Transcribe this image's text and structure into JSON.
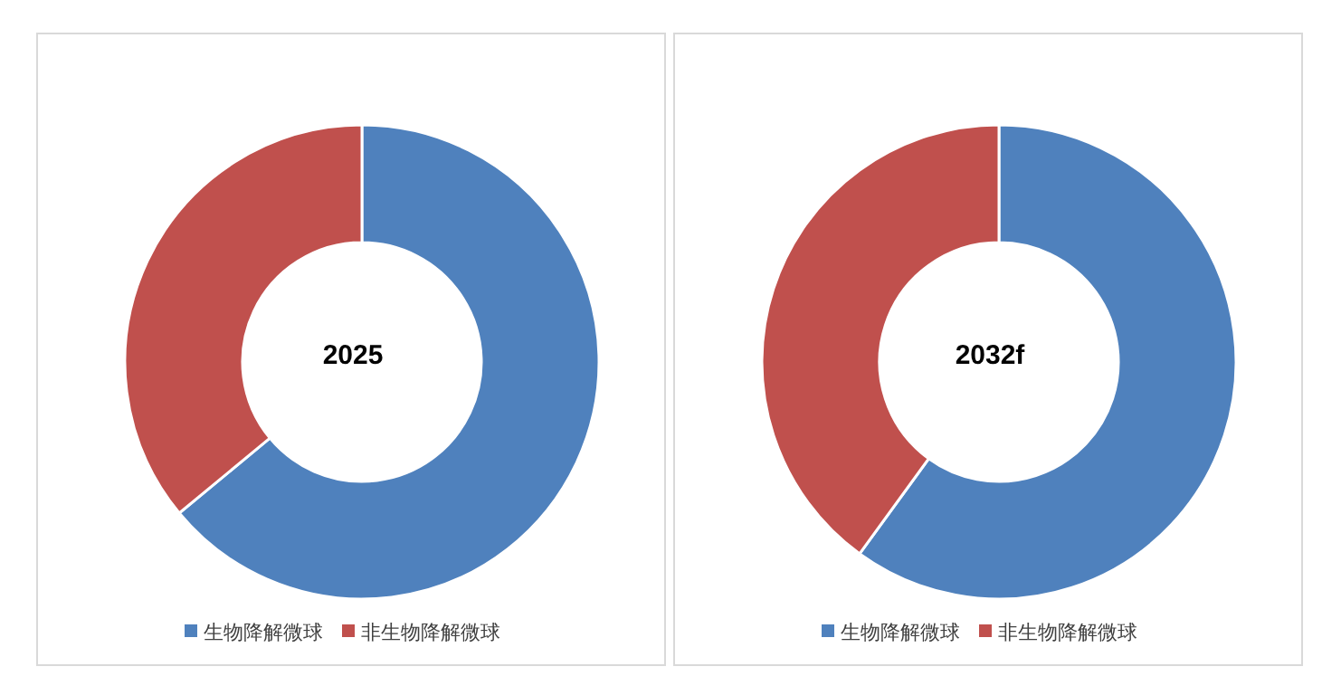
{
  "chart_data": [
    {
      "type": "donut",
      "title": "2025",
      "categories": [
        "生物降解微球",
        "非生物降解微球"
      ],
      "values": [
        64,
        36
      ],
      "colors": [
        "#4f81bd",
        "#c0504d"
      ],
      "legend": "bottom"
    },
    {
      "type": "donut",
      "title": "2032f",
      "categories": [
        "生物降解微球",
        "非生物降解微球"
      ],
      "values": [
        60,
        40
      ],
      "colors": [
        "#4f81bd",
        "#c0504d"
      ],
      "legend": "bottom"
    }
  ]
}
